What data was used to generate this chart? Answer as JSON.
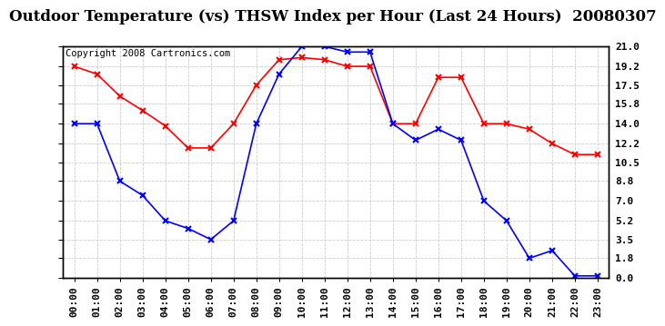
{
  "title": "Outdoor Temperature (vs) THSW Index per Hour (Last 24 Hours)  20080307",
  "copyright": "Copyright 2008 Cartronics.com",
  "hours": [
    "00:00",
    "01:00",
    "02:00",
    "03:00",
    "04:00",
    "05:00",
    "06:00",
    "07:00",
    "08:00",
    "09:00",
    "10:00",
    "11:00",
    "12:00",
    "13:00",
    "14:00",
    "15:00",
    "16:00",
    "17:00",
    "18:00",
    "19:00",
    "20:00",
    "21:00",
    "22:00",
    "23:00"
  ],
  "temp_red": [
    19.2,
    18.5,
    16.5,
    15.2,
    13.8,
    11.8,
    11.8,
    14.0,
    17.5,
    19.8,
    20.0,
    19.8,
    19.2,
    19.2,
    14.0,
    14.0,
    18.2,
    18.2,
    14.0,
    14.0,
    13.5,
    12.2,
    11.2,
    11.2
  ],
  "thsw_blue": [
    14.0,
    14.0,
    8.8,
    7.5,
    5.2,
    4.5,
    3.5,
    5.2,
    14.0,
    18.5,
    21.0,
    21.0,
    20.5,
    20.5,
    14.0,
    12.5,
    13.5,
    12.5,
    7.0,
    5.2,
    1.8,
    2.5,
    0.2,
    0.2
  ],
  "ylim": [
    0.0,
    21.0
  ],
  "yticks": [
    0.0,
    1.8,
    3.5,
    5.2,
    7.0,
    8.8,
    10.5,
    12.2,
    14.0,
    15.8,
    17.5,
    19.2,
    21.0
  ],
  "color_red": "#ff0000",
  "color_blue": "#0000ff",
  "bg_color": "#ffffff",
  "grid_color": "#cccccc",
  "title_fontsize": 12,
  "copyright_fontsize": 7.5,
  "tick_fontsize": 8
}
